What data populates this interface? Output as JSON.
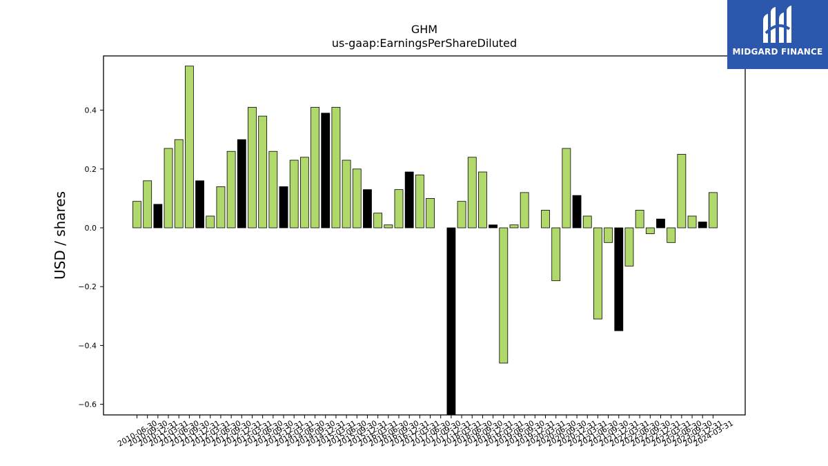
{
  "chart_data": {
    "type": "bar",
    "title": "GHM",
    "subtitle": "us-gaap:EarningsPerShareDiluted",
    "xlabel": "",
    "ylabel": "USD / shares",
    "ylim": [
      -0.63,
      0.58
    ],
    "yticks": [
      -0.6,
      -0.4,
      -0.2,
      0.0,
      0.2,
      0.4
    ],
    "ytick_labels": [
      "−0.6",
      "−0.4",
      "−0.2",
      "0.0",
      "0.2",
      "0.4"
    ],
    "grid": false,
    "colors": {
      "quarter": "#b0d86a",
      "annual": "#000000",
      "edge": "#000000"
    },
    "bars": [
      {
        "label": "2010-06-30",
        "value": 0.09,
        "kind": "quarter"
      },
      {
        "label": "2010-09-30",
        "value": 0.16,
        "kind": "quarter"
      },
      {
        "label": "2010-12-31",
        "value": 0.08,
        "kind": "annual"
      },
      {
        "label": "2011-03-31",
        "value": 0.27,
        "kind": "quarter"
      },
      {
        "label": "2011-06-30",
        "value": 0.3,
        "kind": "quarter"
      },
      {
        "label": "2011-09-30",
        "value": 0.55,
        "kind": "quarter"
      },
      {
        "label": "2011-12-31",
        "value": 0.16,
        "kind": "annual"
      },
      {
        "label": "2012-03-31",
        "value": 0.04,
        "kind": "quarter"
      },
      {
        "label": "2012-06-30",
        "value": 0.14,
        "kind": "quarter"
      },
      {
        "label": "2012-09-30",
        "value": 0.26,
        "kind": "quarter"
      },
      {
        "label": "2012-12-31",
        "value": 0.3,
        "kind": "annual"
      },
      {
        "label": "2013-03-31",
        "value": 0.41,
        "kind": "quarter"
      },
      {
        "label": "2013-06-30",
        "value": 0.38,
        "kind": "quarter"
      },
      {
        "label": "2013-09-30",
        "value": 0.26,
        "kind": "quarter"
      },
      {
        "label": "2013-12-31",
        "value": 0.14,
        "kind": "annual"
      },
      {
        "label": "2014-03-31",
        "value": 0.23,
        "kind": "quarter"
      },
      {
        "label": "2014-06-30",
        "value": 0.24,
        "kind": "quarter"
      },
      {
        "label": "2014-09-30",
        "value": 0.41,
        "kind": "quarter"
      },
      {
        "label": "2014-12-31",
        "value": 0.39,
        "kind": "annual"
      },
      {
        "label": "2015-03-31",
        "value": 0.41,
        "kind": "quarter"
      },
      {
        "label": "2015-06-30",
        "value": 0.23,
        "kind": "quarter"
      },
      {
        "label": "2015-09-30",
        "value": 0.2,
        "kind": "quarter"
      },
      {
        "label": "2015-12-31",
        "value": 0.13,
        "kind": "annual"
      },
      {
        "label": "2016-03-31",
        "value": 0.05,
        "kind": "quarter"
      },
      {
        "label": "2016-06-30",
        "value": 0.01,
        "kind": "quarter"
      },
      {
        "label": "2016-09-30",
        "value": 0.13,
        "kind": "quarter"
      },
      {
        "label": "2016-12-31",
        "value": 0.19,
        "kind": "annual"
      },
      {
        "label": "2017-03-31",
        "value": 0.18,
        "kind": "quarter"
      },
      {
        "label": "2017-06-30",
        "value": 0.1,
        "kind": "quarter"
      },
      {
        "label": "2017-09-30",
        "value": 0.0,
        "kind": "quarter"
      },
      {
        "label": "2017-12-31",
        "value": -0.66,
        "kind": "annual"
      },
      {
        "label": "2018-03-31",
        "value": 0.09,
        "kind": "quarter"
      },
      {
        "label": "2018-06-30",
        "value": 0.24,
        "kind": "quarter"
      },
      {
        "label": "2018-09-30",
        "value": 0.19,
        "kind": "quarter"
      },
      {
        "label": "2018-12-31",
        "value": 0.01,
        "kind": "annual"
      },
      {
        "label": "2019-03-31",
        "value": -0.46,
        "kind": "quarter"
      },
      {
        "label": "2019-06-30",
        "value": 0.01,
        "kind": "quarter"
      },
      {
        "label": "2019-09-30",
        "value": 0.12,
        "kind": "quarter"
      },
      {
        "label": "2019-12-31",
        "value": 0.0,
        "kind": "annual"
      },
      {
        "label": "2020-03-31",
        "value": 0.06,
        "kind": "quarter"
      },
      {
        "label": "2020-06-30",
        "value": -0.18,
        "kind": "quarter"
      },
      {
        "label": "2020-09-30",
        "value": 0.27,
        "kind": "quarter"
      },
      {
        "label": "2020-12-31",
        "value": 0.11,
        "kind": "annual"
      },
      {
        "label": "2021-03-31",
        "value": 0.04,
        "kind": "quarter"
      },
      {
        "label": "2021-06-30",
        "value": -0.31,
        "kind": "quarter"
      },
      {
        "label": "2021-09-30",
        "value": -0.05,
        "kind": "quarter"
      },
      {
        "label": "2021-12-31",
        "value": -0.35,
        "kind": "annual"
      },
      {
        "label": "2022-03-31",
        "value": -0.13,
        "kind": "quarter"
      },
      {
        "label": "2022-06-30",
        "value": 0.06,
        "kind": "quarter"
      },
      {
        "label": "2022-09-30",
        "value": -0.02,
        "kind": "quarter"
      },
      {
        "label": "2022-12-31",
        "value": 0.03,
        "kind": "annual"
      },
      {
        "label": "2023-03-31",
        "value": -0.05,
        "kind": "quarter"
      },
      {
        "label": "2023-06-30",
        "value": 0.25,
        "kind": "quarter"
      },
      {
        "label": "2023-09-30",
        "value": 0.04,
        "kind": "quarter"
      },
      {
        "label": "2023-12-31",
        "value": 0.02,
        "kind": "annual"
      },
      {
        "label": "2024-03-31",
        "value": 0.12,
        "kind": "quarter"
      }
    ]
  },
  "logo": {
    "text": "MIDGARD FINANCE",
    "background": "#2b57ad",
    "foreground": "#ffffff"
  }
}
